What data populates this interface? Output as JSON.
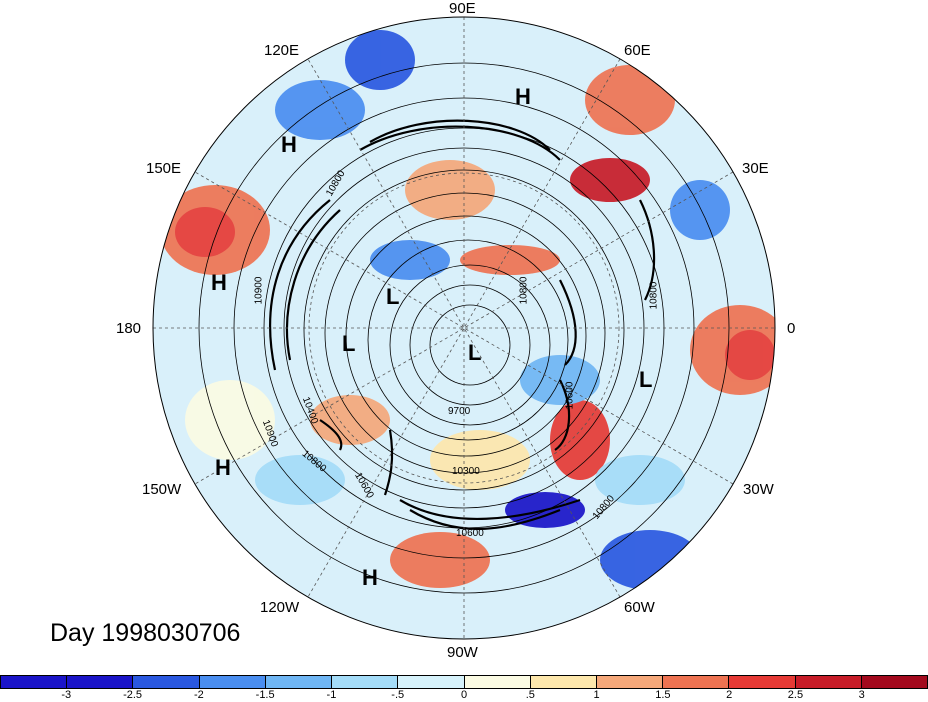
{
  "map": {
    "timestamp": "Day 1998030706",
    "longitude_labels": [
      "90E",
      "60E",
      "30E",
      "0",
      "30W",
      "60W",
      "90W",
      "120W",
      "150W",
      "180",
      "150E",
      "120E"
    ],
    "markers": [
      "H",
      "H",
      "H",
      "H",
      "H",
      "L",
      "L",
      "L",
      "L"
    ],
    "contour_labels": [
      "10800",
      "10800",
      "10900",
      "10800",
      "10600",
      "10900",
      "10400",
      "10800",
      "10600",
      "9700",
      "10300",
      "10600",
      "10800",
      "10800"
    ]
  },
  "colorbar": {
    "tick_labels": [
      "-3",
      "-2.5",
      "-2",
      "-1.5",
      "-1",
      "-.5",
      "0",
      ".5",
      "1",
      "1.5",
      "2",
      "2.5",
      "3"
    ],
    "colors": [
      "#1a14c8",
      "#2a58e0",
      "#4a8ef0",
      "#6fb6f4",
      "#a4dcf8",
      "#d6f2fb",
      "#fbfbe3",
      "#fde7ac",
      "#f5a87a",
      "#ee7352",
      "#e63a35",
      "#c71c28",
      "#a3091d"
    ]
  }
}
